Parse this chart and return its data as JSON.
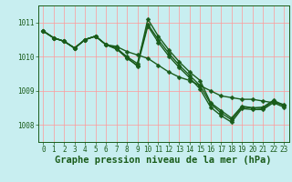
{
  "title": "Graphe pression niveau de la mer (hPa)",
  "bg_color": "#c8eef0",
  "grid_color": "#ff9999",
  "line_color": "#1a5c1a",
  "xlim": [
    -0.5,
    23.5
  ],
  "ylim": [
    1007.5,
    1011.5
  ],
  "yticks": [
    1008,
    1009,
    1010,
    1011
  ],
  "xticks": [
    0,
    1,
    2,
    3,
    4,
    5,
    6,
    7,
    8,
    9,
    10,
    11,
    12,
    13,
    14,
    15,
    16,
    17,
    18,
    19,
    20,
    21,
    22,
    23
  ],
  "series": [
    [
      1010.75,
      1010.55,
      1010.45,
      1010.25,
      1010.5,
      1010.6,
      1010.35,
      1010.3,
      1010.15,
      1010.05,
      1009.95,
      1009.75,
      1009.55,
      1009.4,
      1009.3,
      1009.15,
      1009.0,
      1008.85,
      1008.8,
      1008.75,
      1008.75,
      1008.7,
      1008.65,
      1008.6
    ],
    [
      1010.75,
      1010.55,
      1010.45,
      1010.25,
      1010.5,
      1010.6,
      1010.35,
      1010.25,
      1009.95,
      1009.75,
      1011.1,
      1010.6,
      1010.2,
      1009.85,
      1009.55,
      1009.3,
      1008.65,
      1008.42,
      1008.2,
      1008.55,
      1008.5,
      1008.52,
      1008.72,
      1008.58
    ],
    [
      1010.75,
      1010.55,
      1010.45,
      1010.25,
      1010.5,
      1010.6,
      1010.35,
      1010.25,
      1010.0,
      1009.8,
      1010.95,
      1010.5,
      1010.1,
      1009.75,
      1009.45,
      1009.15,
      1008.62,
      1008.35,
      1008.15,
      1008.52,
      1008.5,
      1008.48,
      1008.7,
      1008.56
    ],
    [
      1010.75,
      1010.55,
      1010.45,
      1010.25,
      1010.5,
      1010.6,
      1010.35,
      1010.22,
      1009.98,
      1009.72,
      1010.9,
      1010.42,
      1010.02,
      1009.68,
      1009.38,
      1009.05,
      1008.52,
      1008.27,
      1008.08,
      1008.48,
      1008.45,
      1008.45,
      1008.65,
      1008.52
    ]
  ],
  "linewidths": [
    1.0,
    1.0,
    1.0,
    1.0
  ],
  "markersizes": [
    2.5,
    2.5,
    2.5,
    2.5
  ],
  "title_fontsize": 7.5,
  "tick_fontsize": 5.5,
  "ylabel_fontsize": 6.0
}
